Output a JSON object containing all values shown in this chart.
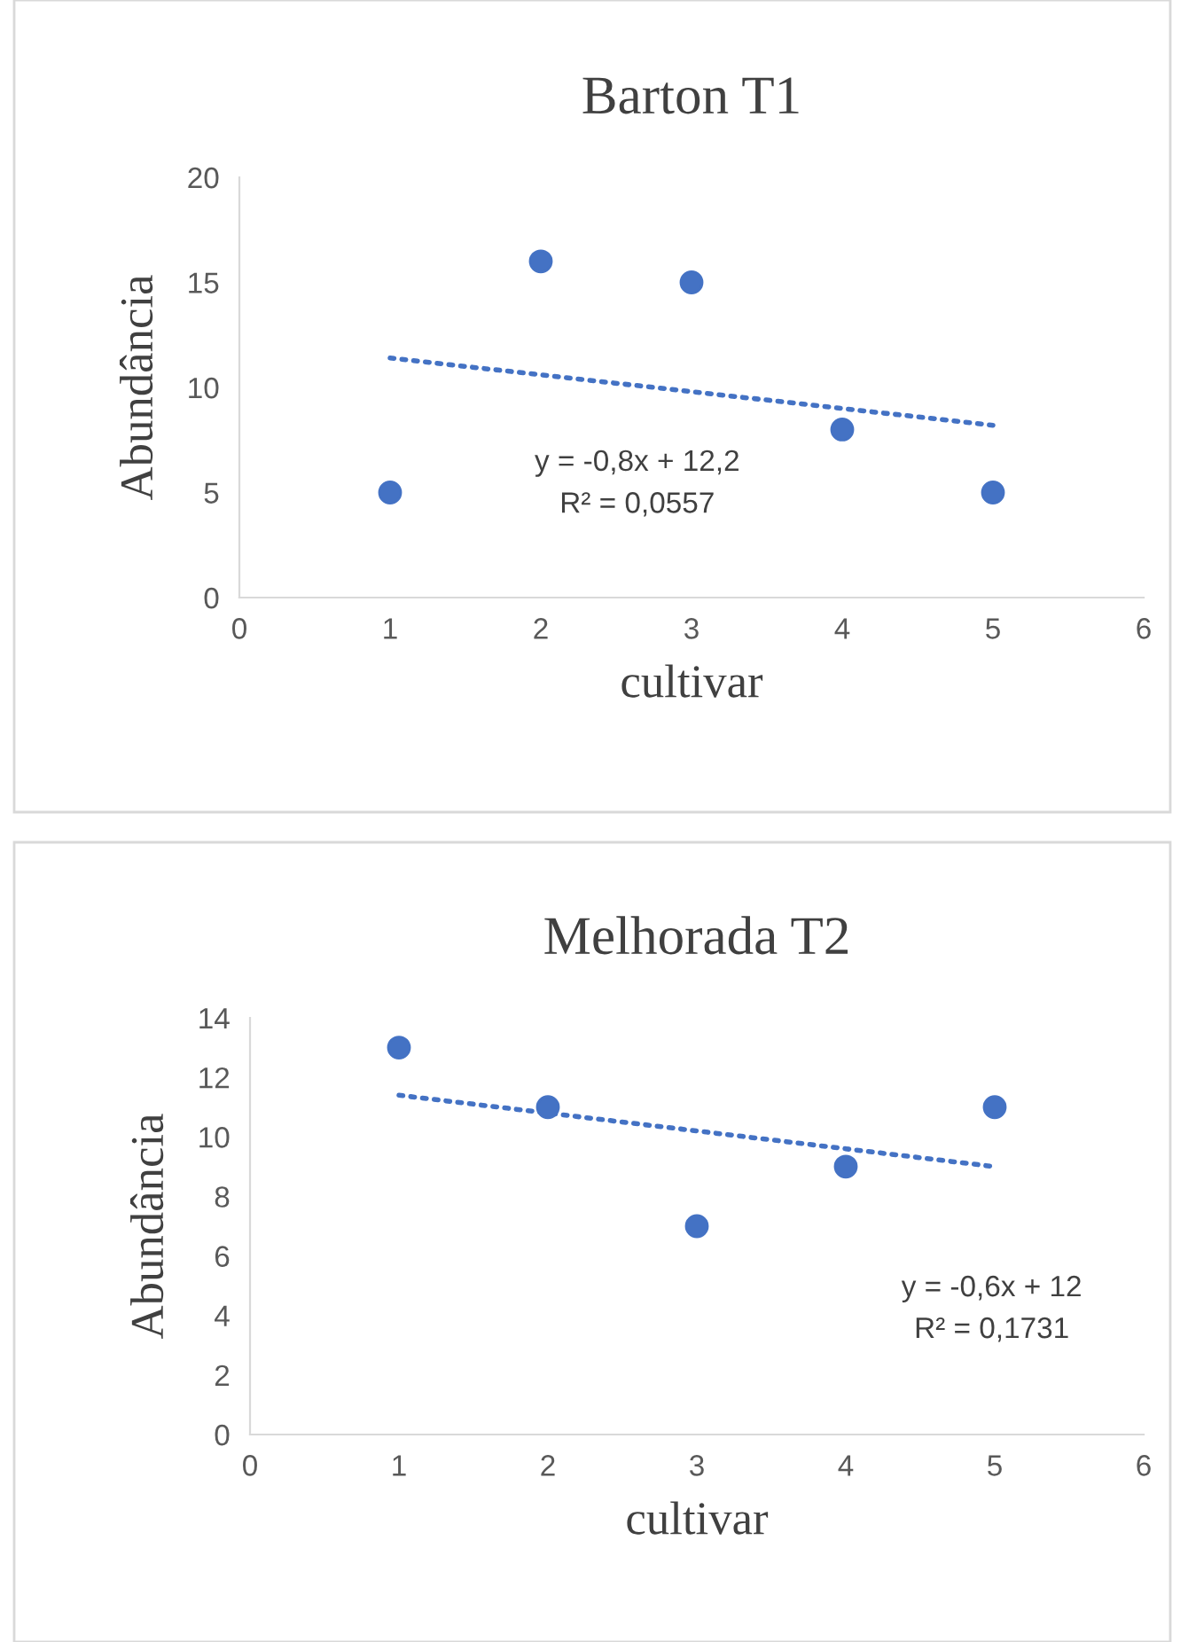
{
  "chart_data": [
    {
      "type": "scatter",
      "title": "Barton T1",
      "xlabel": "cultivar",
      "ylabel": "Abundância",
      "xlim": [
        0,
        6
      ],
      "xticks": [
        0,
        1,
        2,
        3,
        4,
        5,
        6
      ],
      "ylim": [
        0,
        20
      ],
      "yticks": [
        0,
        5,
        10,
        15,
        20
      ],
      "grid": false,
      "x": [
        1,
        2,
        3,
        4,
        5
      ],
      "series": [
        {
          "color": "#4472c4",
          "marker": "circle",
          "values": [
            5,
            16,
            15,
            8,
            5
          ]
        },
        {
          "type": "line",
          "color": "#4472c4",
          "line_style": "dotted",
          "marker": "none",
          "values": [
            11.4,
            10.6,
            9.8,
            9.0,
            8.2
          ]
        }
      ],
      "annotations": [
        "y = -0,8x + 12,2",
        "R² = 0,0557"
      ]
    },
    {
      "type": "scatter",
      "title": "Melhorada T2",
      "xlabel": "cultivar",
      "ylabel": "Abundância",
      "xlim": [
        0,
        6
      ],
      "xticks": [
        0,
        1,
        2,
        3,
        4,
        5,
        6
      ],
      "ylim": [
        0,
        14
      ],
      "yticks": [
        0,
        2,
        4,
        6,
        8,
        10,
        12,
        14
      ],
      "grid": false,
      "x": [
        1,
        2,
        3,
        4,
        5
      ],
      "series": [
        {
          "color": "#4472c4",
          "marker": "circle",
          "values": [
            13,
            11,
            7,
            9,
            11
          ]
        },
        {
          "type": "line",
          "color": "#4472c4",
          "line_style": "dotted",
          "marker": "none",
          "values": [
            11.4,
            10.8,
            10.2,
            9.6,
            9.0
          ]
        }
      ],
      "annotations": [
        "y = -0,6x + 12",
        "R² = 0,1731"
      ]
    }
  ]
}
